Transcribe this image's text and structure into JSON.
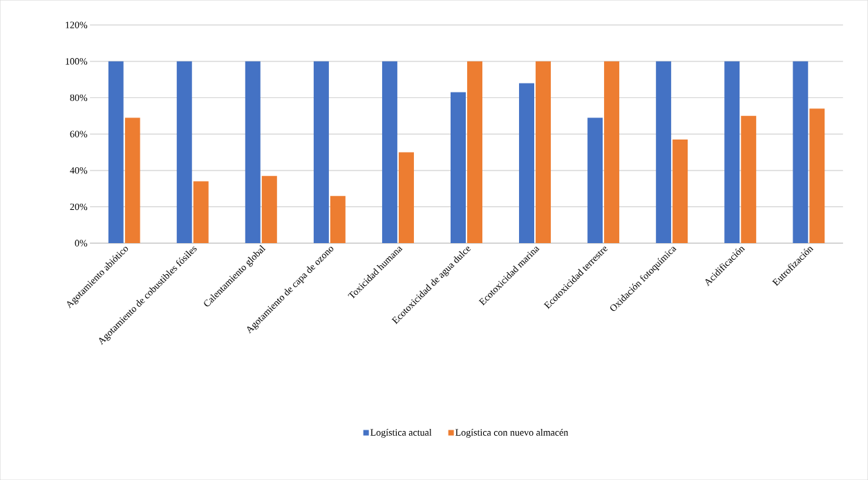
{
  "chart_data": {
    "type": "bar",
    "categories": [
      "Agotamiento abiótico",
      "Agotamiento de cobustibles fósiles",
      "Calentamiento global",
      "Agotamiento de capa de ozono",
      "Toxicidad humana",
      "Ecotoxicidad de agua dulce",
      "Ecotoxicidad marina",
      "Ecotoxicidad terrestre",
      "Oxidación fotoquímica",
      "Acidificación",
      "Eutrofización"
    ],
    "series": [
      {
        "name": "Logística actual",
        "color": "#4472c4",
        "values": [
          100,
          100,
          100,
          100,
          100,
          83,
          88,
          69,
          100,
          100,
          100
        ]
      },
      {
        "name": "Logística con nuevo almacén",
        "color": "#ed7d31",
        "values": [
          69,
          34,
          37,
          26,
          50,
          100,
          100,
          100,
          57,
          70,
          74
        ]
      }
    ],
    "ylim": [
      0,
      120
    ],
    "yticks": [
      {
        "value": 0,
        "label": "0%"
      },
      {
        "value": 20,
        "label": "20%"
      },
      {
        "value": 40,
        "label": "40%"
      },
      {
        "value": 60,
        "label": "60%"
      },
      {
        "value": 80,
        "label": "80%"
      },
      {
        "value": 100,
        "label": "100%"
      },
      {
        "value": 120,
        "label": "120%"
      }
    ],
    "grid": "y",
    "legend": "bottom"
  }
}
